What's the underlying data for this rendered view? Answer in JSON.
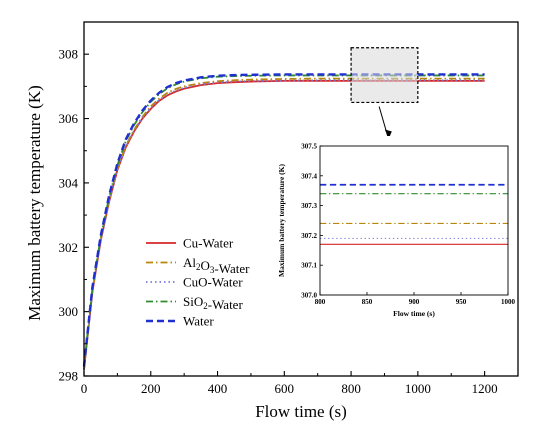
{
  "chart_data": [
    {
      "id": "main",
      "type": "line",
      "xlabel": "Flow time (s)",
      "ylabel": "Maximum battery temperature (K)",
      "xlim": [
        0,
        1300
      ],
      "ylim": [
        298,
        309
      ],
      "xticks": [
        0,
        200,
        400,
        600,
        800,
        1000,
        1200
      ],
      "yticks": [
        298,
        300,
        302,
        304,
        306,
        308
      ],
      "grid": false,
      "legend_position": "center-left",
      "zoom_box": {
        "x": [
          800,
          1000
        ],
        "y": [
          306.5,
          308.2
        ]
      },
      "x": [
        0,
        25,
        50,
        75,
        100,
        125,
        150,
        175,
        200,
        225,
        250,
        275,
        300,
        350,
        400,
        450,
        500,
        600,
        700,
        800,
        900,
        1000,
        1100,
        1200
      ],
      "series": [
        {
          "name_parts": [
            "Cu-Water"
          ],
          "color": "#d62728",
          "dash": "solid",
          "values": [
            298.2,
            300.6,
            302.2,
            303.4,
            304.4,
            305.1,
            305.6,
            306.0,
            306.3,
            306.55,
            306.72,
            306.84,
            306.93,
            307.04,
            307.1,
            307.13,
            307.15,
            307.17,
            307.17,
            307.17,
            307.17,
            307.17,
            307.17,
            307.17
          ]
        },
        {
          "name_parts": [
            "Al",
            "2",
            "O",
            "3",
            "-Water"
          ],
          "color": "#b8860b",
          "dash": "dashdot",
          "values": [
            298.2,
            300.65,
            302.25,
            303.45,
            304.45,
            305.15,
            305.65,
            306.05,
            306.38,
            306.62,
            306.8,
            306.92,
            307.0,
            307.1,
            307.16,
            307.19,
            307.21,
            307.23,
            307.24,
            307.24,
            307.24,
            307.24,
            307.24,
            307.24
          ]
        },
        {
          "name_parts": [
            "CuO-Water"
          ],
          "color": "#7b7bd6",
          "dash": "dotted",
          "values": [
            298.2,
            300.6,
            302.2,
            303.4,
            304.42,
            305.12,
            305.62,
            306.02,
            306.33,
            306.58,
            306.75,
            306.87,
            306.96,
            307.06,
            307.12,
            307.15,
            307.17,
            307.18,
            307.19,
            307.19,
            307.19,
            307.19,
            307.19,
            307.19
          ]
        },
        {
          "name_parts": [
            "SiO",
            "2",
            "-Water"
          ],
          "color": "#2e8b2e",
          "dash": "dashdot",
          "values": [
            298.3,
            300.7,
            302.3,
            303.55,
            304.55,
            305.3,
            305.8,
            306.2,
            306.52,
            306.76,
            306.94,
            307.06,
            307.15,
            307.25,
            307.3,
            307.32,
            307.33,
            307.34,
            307.34,
            307.34,
            307.34,
            307.34,
            307.34,
            307.34
          ]
        },
        {
          "name_parts": [
            "Water"
          ],
          "color": "#1f2fd1",
          "dash": "dashed",
          "values": [
            298.3,
            300.75,
            302.35,
            303.6,
            304.6,
            305.35,
            305.85,
            306.25,
            306.56,
            306.8,
            306.98,
            307.1,
            307.18,
            307.28,
            307.33,
            307.35,
            307.36,
            307.37,
            307.37,
            307.37,
            307.37,
            307.37,
            307.37,
            307.37
          ]
        }
      ]
    },
    {
      "id": "inset",
      "type": "line",
      "xlabel": "Flow time (s)",
      "ylabel": "Maximum battery temperature (K)",
      "xlim": [
        800,
        1000
      ],
      "ylim": [
        307.0,
        307.5
      ],
      "xticks": [
        800,
        850,
        900,
        950,
        1000
      ],
      "yticks": [
        307.0,
        307.1,
        307.2,
        307.3,
        307.4,
        307.5
      ],
      "xtick_labels": [
        "800",
        "850",
        "900",
        "950",
        "1000"
      ],
      "ytick_labels": [
        "307.0",
        "307.1",
        "307.2",
        "307.3",
        "307.4",
        "307.5"
      ],
      "grid": false,
      "series": [
        {
          "ref": "Cu-Water",
          "color": "#d62728",
          "dash": "solid",
          "value": 307.17
        },
        {
          "ref": "Al2O3-Water",
          "color": "#b8860b",
          "dash": "dashdot",
          "value": 307.24
        },
        {
          "ref": "CuO-Water",
          "color": "#7b7bd6",
          "dash": "dotted",
          "value": 307.19
        },
        {
          "ref": "SiO2-Water",
          "color": "#2e8b2e",
          "dash": "dashdot",
          "value": 307.34
        },
        {
          "ref": "Water",
          "color": "#1f2fd1",
          "dash": "dashed",
          "value": 307.37
        }
      ]
    }
  ]
}
